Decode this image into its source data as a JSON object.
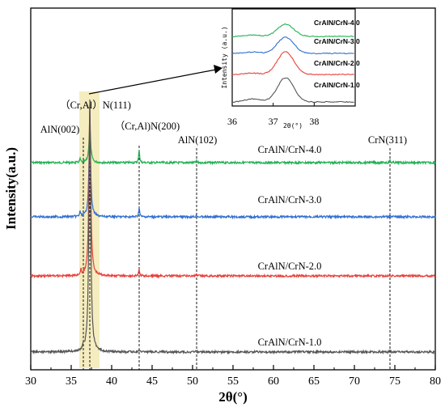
{
  "chart_data": {
    "type": "line",
    "xlabel": "2θ(°)",
    "ylabel": "Intensity(a.u.)",
    "xlim": [
      30,
      80
    ],
    "x_ticks": [
      "30",
      "35",
      "40",
      "45",
      "50",
      "55",
      "60",
      "65",
      "70",
      "75",
      "80"
    ],
    "series": [
      {
        "name": "CrAlN/CrN-4.0",
        "color": "#22b055",
        "peaks": [
          {
            "x": 36.1,
            "h": 0.12
          },
          {
            "x": 37.3,
            "h": 1.0
          },
          {
            "x": 43.4,
            "h": 0.42
          },
          {
            "x": 50.5,
            "h": 0.05
          },
          {
            "x": 74.4,
            "h": 0.07
          }
        ]
      },
      {
        "name": "CrAlN/CrN-3.0",
        "color": "#2f6fd0",
        "peaks": [
          {
            "x": 36.1,
            "h": 0.15
          },
          {
            "x": 37.3,
            "h": 1.0
          },
          {
            "x": 43.4,
            "h": 0.3
          },
          {
            "x": 50.5,
            "h": 0.06
          },
          {
            "x": 74.4,
            "h": 0.08
          }
        ]
      },
      {
        "name": "CrAlN/CrN-2.0",
        "color": "#e8403a",
        "peaks": [
          {
            "x": 36.2,
            "h": 0.15
          },
          {
            "x": 37.3,
            "h": 1.0
          },
          {
            "x": 43.4,
            "h": 0.2
          },
          {
            "x": 50.5,
            "h": 0.04
          },
          {
            "x": 74.4,
            "h": 0.05
          }
        ]
      },
      {
        "name": "CrAlN/CrN-1.0",
        "color": "#555555",
        "peaks": [
          {
            "x": 36.5,
            "h": 0.15
          },
          {
            "x": 37.3,
            "h": 1.0
          },
          {
            "x": 43.4,
            "h": 0.09
          },
          {
            "x": 50.5,
            "h": 0.04
          },
          {
            "x": 74.4,
            "h": 0.05
          }
        ]
      }
    ],
    "peak_labels": [
      {
        "text": "AlN(002)",
        "x": 36.5
      },
      {
        "text": "（Cr,Al）N(111)",
        "x": 37.3
      },
      {
        "text": "（Cr,Al)N(200)",
        "x": 43.4
      },
      {
        "text": "AlN(102)",
        "x": 50.5
      },
      {
        "text": "CrN(311)",
        "x": 74.4
      }
    ],
    "highlight_range": [
      36.0,
      38.5
    ],
    "inset": {
      "xlabel": "2θ(°)",
      "ylabel": "Intensity (a.u.)",
      "xlim": [
        36,
        39
      ],
      "x_ticks": [
        "36",
        "37",
        "38"
      ],
      "legend": [
        "CrAlN/CrN-4.0",
        "CrAlN/CrN-3.0",
        "CrAlN/CrN-2.0",
        "CrAlN/CrN-1.0"
      ]
    }
  }
}
